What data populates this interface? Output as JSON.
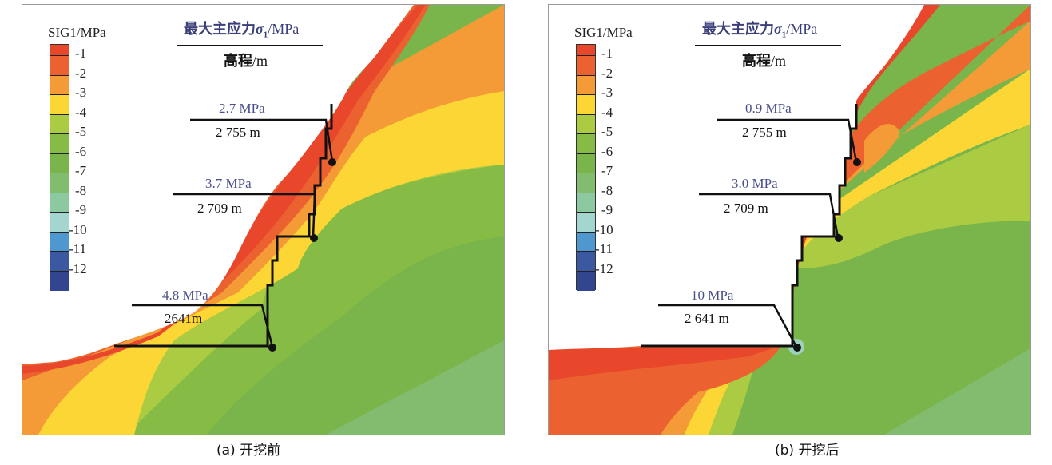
{
  "legend": {
    "title": "SIG1/MPa",
    "unit": "MPa",
    "levels": [
      {
        "label": "-1",
        "color": "#e8472b"
      },
      {
        "label": "-2",
        "color": "#ec6130"
      },
      {
        "label": "-3",
        "color": "#f49a36"
      },
      {
        "label": "-4",
        "color": "#fcd634"
      },
      {
        "label": "-5",
        "color": "#aacb42"
      },
      {
        "label": "-6",
        "color": "#86bb45"
      },
      {
        "label": "-7",
        "color": "#7ab54b"
      },
      {
        "label": "-8",
        "color": "#82bc6e"
      },
      {
        "label": "-9",
        "color": "#8cc8a0"
      },
      {
        "label": "-10",
        "color": "#a2d6cf"
      },
      {
        "label": "-11",
        "color": "#4e97cf"
      },
      {
        "label": "-12",
        "color": "#3b58a0"
      },
      {
        "label": "",
        "color": "#34458f"
      }
    ]
  },
  "header": {
    "top_cn": "最大主应力",
    "top_symbol": "σ",
    "top_subscript": "1",
    "top_unit": "/MPa",
    "bottom_cn": "高程",
    "bottom_unit": "/m"
  },
  "panels": [
    {
      "id": "a",
      "caption": "(a) 开挖前",
      "annotations": [
        {
          "stress": "2.7 MPa",
          "elevation": "2 755 m"
        },
        {
          "stress": "3.7 MPa",
          "elevation": "2 709 m"
        },
        {
          "stress": "4.8 MPa",
          "elevation": "2641m"
        }
      ]
    },
    {
      "id": "b",
      "caption": "(b) 开挖后",
      "annotations": [
        {
          "stress": "0.9 MPa",
          "elevation": "2 755 m"
        },
        {
          "stress": "3.0 MPa",
          "elevation": "2 709 m"
        },
        {
          "stress": "10 MPa",
          "elevation": "2 641 m"
        }
      ]
    }
  ],
  "colors": {
    "annotation_value": "#4a4f8a",
    "header_title": "#3a3f7a",
    "leader_line": "#111111"
  }
}
